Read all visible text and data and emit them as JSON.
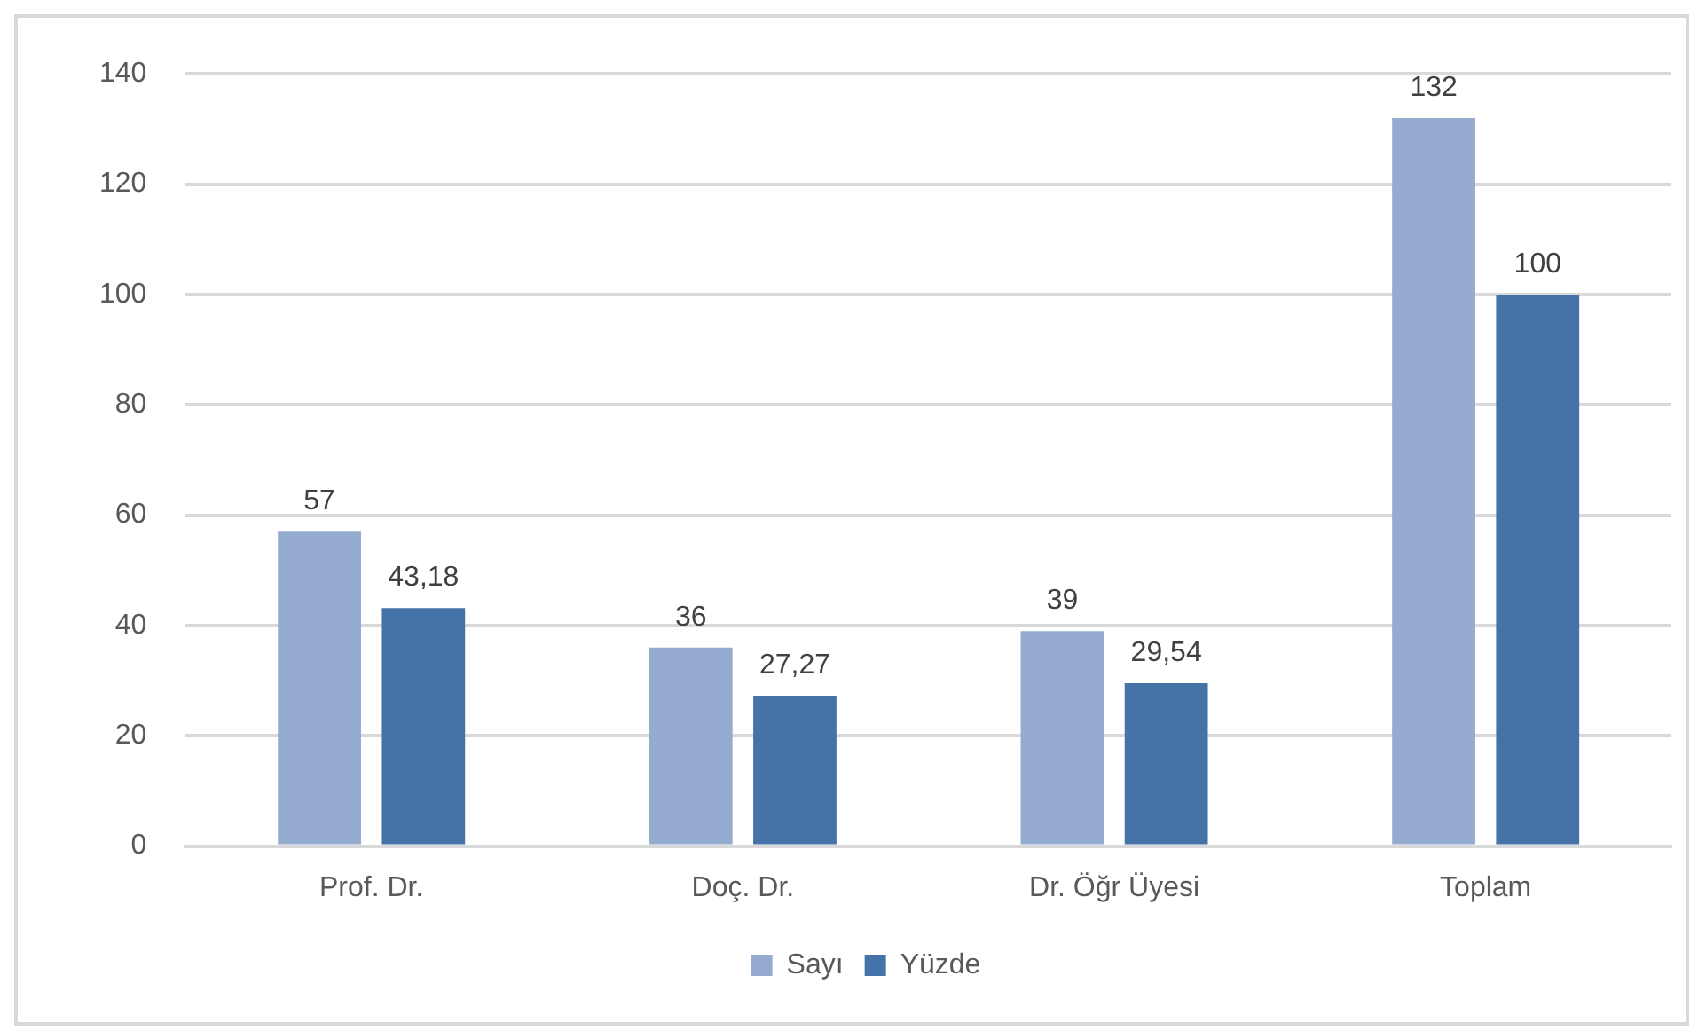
{
  "chart_data": {
    "type": "bar",
    "categories": [
      "Prof. Dr.",
      "Doç. Dr.",
      "Dr. Öğr Üyesi",
      "Toplam"
    ],
    "series": [
      {
        "name": "Sayı",
        "color": "#95abd0",
        "values": [
          57,
          36,
          39,
          132
        ],
        "value_labels": [
          "57",
          "36",
          "39",
          "132"
        ]
      },
      {
        "name": "Yüzde",
        "color": "#4673a7",
        "values": [
          43.18,
          27.27,
          29.54,
          100
        ],
        "value_labels": [
          "43,18",
          "27,27",
          "29,54",
          "100"
        ]
      }
    ],
    "ylim": [
      0,
      140
    ],
    "yticks": [
      0,
      20,
      40,
      60,
      80,
      100,
      120,
      140
    ],
    "grid": "y",
    "legend": "bottom"
  }
}
